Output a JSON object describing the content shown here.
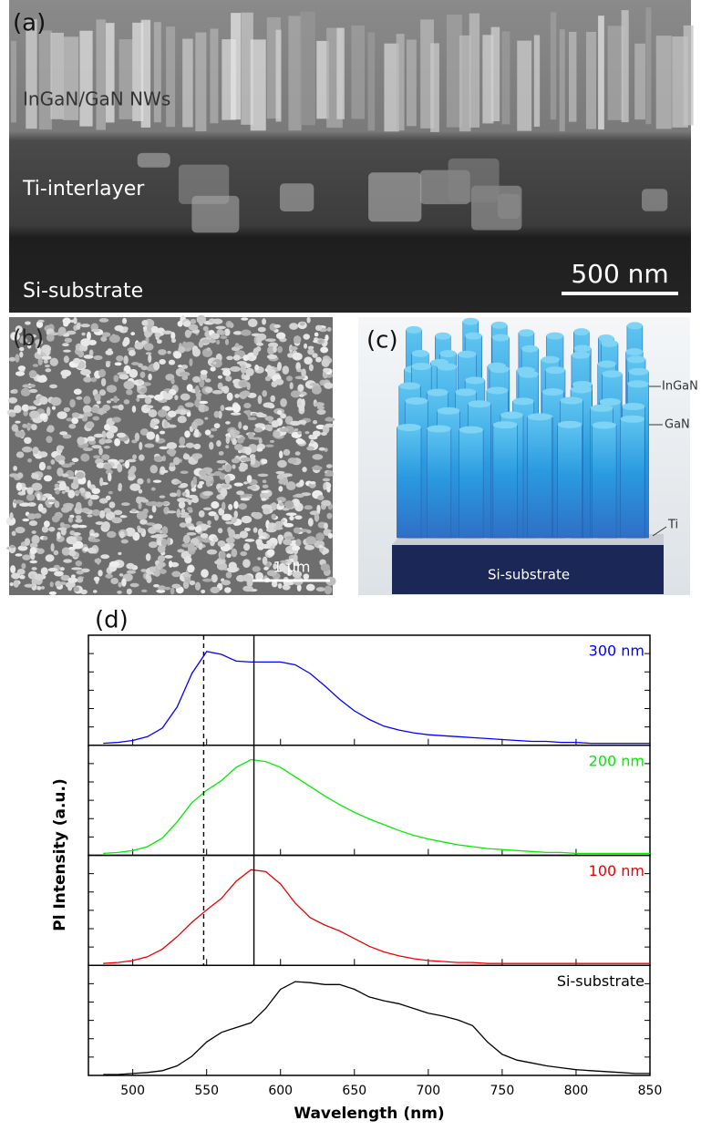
{
  "panel_a": {
    "label": "(a)",
    "layer_labels": [
      "InGaN/GaN NWs",
      "Ti-interlayer",
      "Si-substrate"
    ],
    "scale_bar": "500 nm"
  },
  "panel_b": {
    "label": "(b)",
    "scale_bar": "1 μm"
  },
  "panel_c": {
    "label": "(c)",
    "layer_labels": [
      "InGaN",
      "GaN",
      "Ti"
    ],
    "substrate_label": "Si-substrate"
  },
  "panel_d": {
    "label": "(d)"
  },
  "chart_data": {
    "type": "line",
    "x_label": "Wavelength (nm)",
    "y_label": "Pl Intensity (a.u.)",
    "xlim": [
      470,
      850
    ],
    "xticks": [
      500,
      550,
      600,
      650,
      700,
      750,
      800,
      850
    ],
    "ylim": [
      0,
      1.15
    ],
    "x": [
      480,
      490,
      500,
      510,
      520,
      530,
      540,
      550,
      560,
      570,
      580,
      590,
      600,
      610,
      620,
      630,
      640,
      650,
      660,
      670,
      680,
      690,
      700,
      710,
      720,
      730,
      740,
      750,
      760,
      770,
      780,
      790,
      800,
      810,
      820,
      830,
      840,
      850
    ],
    "series": [
      {
        "name": "300 nm",
        "color": "#0000ff",
        "values": [
          0.02,
          0.03,
          0.05,
          0.09,
          0.18,
          0.4,
          0.75,
          0.98,
          0.95,
          0.88,
          0.87,
          0.87,
          0.87,
          0.84,
          0.75,
          0.62,
          0.48,
          0.36,
          0.27,
          0.2,
          0.16,
          0.13,
          0.11,
          0.1,
          0.09,
          0.08,
          0.07,
          0.06,
          0.05,
          0.04,
          0.04,
          0.03,
          0.03,
          0.02,
          0.02,
          0.02,
          0.02,
          0.02
        ]
      },
      {
        "name": "200 nm",
        "color": "#00ee00",
        "values": [
          0.02,
          0.03,
          0.05,
          0.09,
          0.18,
          0.35,
          0.55,
          0.68,
          0.78,
          0.92,
          1.0,
          0.98,
          0.92,
          0.82,
          0.72,
          0.62,
          0.53,
          0.45,
          0.38,
          0.32,
          0.26,
          0.21,
          0.17,
          0.14,
          0.11,
          0.09,
          0.07,
          0.06,
          0.05,
          0.04,
          0.03,
          0.03,
          0.02,
          0.02,
          0.02,
          0.02,
          0.02,
          0.02
        ]
      },
      {
        "name": "100 nm",
        "color": "#ee0000",
        "values": [
          0.02,
          0.03,
          0.05,
          0.09,
          0.17,
          0.3,
          0.45,
          0.58,
          0.7,
          0.88,
          1.0,
          0.98,
          0.85,
          0.65,
          0.5,
          0.42,
          0.36,
          0.28,
          0.2,
          0.14,
          0.1,
          0.07,
          0.05,
          0.04,
          0.03,
          0.03,
          0.02,
          0.02,
          0.02,
          0.02,
          0.02,
          0.02,
          0.02,
          0.02,
          0.02,
          0.02,
          0.02,
          0.02
        ]
      },
      {
        "name": "Si-substrate",
        "color": "#000000",
        "values": [
          0.01,
          0.01,
          0.02,
          0.03,
          0.05,
          0.1,
          0.2,
          0.35,
          0.45,
          0.5,
          0.55,
          0.7,
          0.9,
          0.98,
          0.97,
          0.95,
          0.95,
          0.9,
          0.82,
          0.78,
          0.75,
          0.7,
          0.65,
          0.62,
          0.58,
          0.52,
          0.35,
          0.22,
          0.16,
          0.13,
          0.1,
          0.08,
          0.06,
          0.05,
          0.04,
          0.03,
          0.02,
          0.02
        ]
      }
    ],
    "vlines": [
      {
        "x": 548,
        "style": "dashed"
      },
      {
        "x": 582,
        "style": "solid"
      }
    ]
  }
}
